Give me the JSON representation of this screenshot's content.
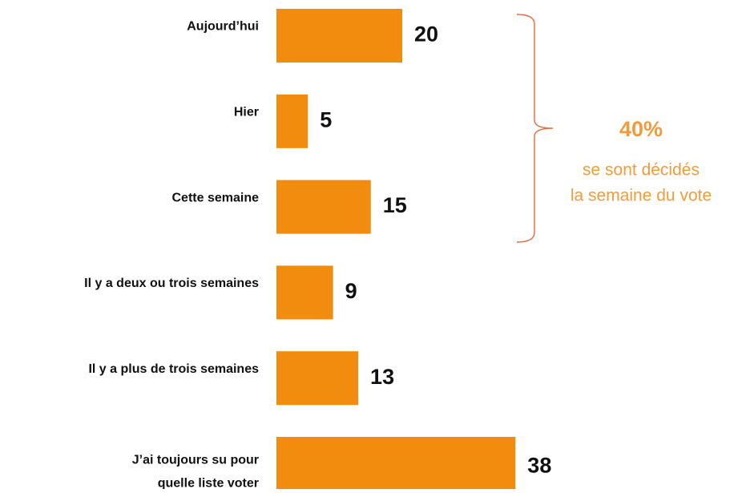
{
  "chart_data": {
    "type": "bar",
    "orientation": "horizontal",
    "categories": [
      "Aujourd’hui",
      "Hier",
      "Cette semaine",
      "Il y a deux ou trois semaines",
      "Il y a plus de trois semaines",
      [
        "J’ai toujours su pour",
        "quelle liste voter"
      ]
    ],
    "values": [
      20,
      5,
      15,
      9,
      13,
      38
    ],
    "color": "#f28c0f",
    "xlim": [
      0,
      40
    ],
    "annotation": {
      "value": "40%",
      "lines": [
        "se sont décidés",
        "la semaine du vote"
      ],
      "color": "#f39b3c"
    }
  }
}
